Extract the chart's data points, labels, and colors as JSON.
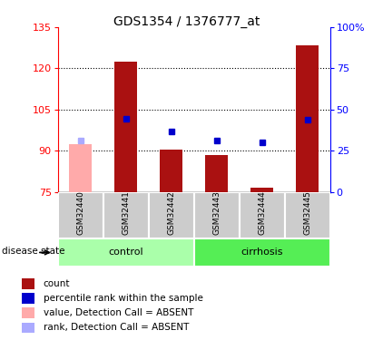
{
  "title": "GDS1354 / 1376777_at",
  "samples": [
    "GSM32440",
    "GSM32441",
    "GSM32442",
    "GSM32443",
    "GSM32444",
    "GSM32445"
  ],
  "bar_values": [
    null,
    122.5,
    90.5,
    88.5,
    76.5,
    128.5
  ],
  "rank_values": [
    null,
    44.5,
    37.0,
    31.5,
    30.0,
    44.0
  ],
  "absent_bar_value": 92.5,
  "absent_rank_value": 31.0,
  "absent_index": 0,
  "ylim_left": [
    75,
    135
  ],
  "ylim_right": [
    0,
    100
  ],
  "yticks_left": [
    75,
    90,
    105,
    120,
    135
  ],
  "yticks_right": [
    0,
    25,
    50,
    75,
    100
  ],
  "hgrid_at": [
    90,
    105,
    120
  ],
  "bar_color": "#aa1111",
  "bar_absent_color": "#ffaaaa",
  "rank_color": "#0000cc",
  "rank_absent_color": "#aaaaff",
  "control_color": "#aaffaa",
  "cirrhosis_color": "#55ee55",
  "sample_bg_color": "#cccccc",
  "legend": [
    {
      "color": "#aa1111",
      "label": "count"
    },
    {
      "color": "#0000cc",
      "label": "percentile rank within the sample"
    },
    {
      "color": "#ffaaaa",
      "label": "value, Detection Call = ABSENT"
    },
    {
      "color": "#aaaaff",
      "label": "rank, Detection Call = ABSENT"
    }
  ]
}
